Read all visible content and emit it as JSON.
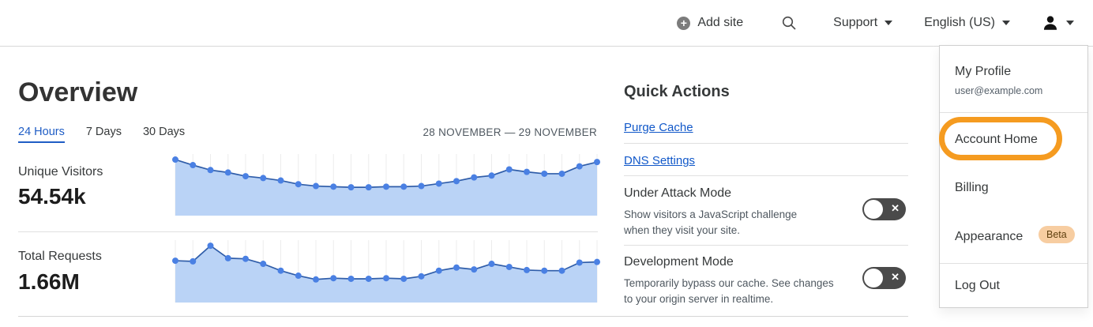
{
  "nav": {
    "add_site_label": "Add site",
    "support_label": "Support",
    "language_label": "English (US)"
  },
  "overview": {
    "title": "Overview",
    "tabs": [
      {
        "label": "24 Hours",
        "active": true
      },
      {
        "label": "7 Days",
        "active": false
      },
      {
        "label": "30 Days",
        "active": false
      }
    ],
    "date_range": "28 NOVEMBER — 29 NOVEMBER",
    "metrics": [
      {
        "label": "Unique Visitors",
        "value": "54.54k"
      },
      {
        "label": "Total Requests",
        "value": "1.66M"
      }
    ]
  },
  "chart_data": [
    {
      "type": "area",
      "title": "Unique Visitors",
      "total_label": "54.54k",
      "x_axis": "24 hours, 28 November — 29 November (ticks unlabeled)",
      "ylim": [
        0,
        100
      ],
      "grid": "vertical",
      "legend": "none",
      "values": [
        91,
        82,
        74,
        70,
        64,
        61,
        57,
        51,
        48,
        47,
        46,
        46,
        47,
        47,
        48,
        52,
        56,
        62,
        65,
        75,
        71,
        68,
        68,
        80,
        87
      ]
    },
    {
      "type": "area",
      "title": "Total Requests",
      "total_label": "1.66M",
      "x_axis": "24 hours, 28 November — 29 November (ticks unlabeled)",
      "ylim": [
        0,
        100
      ],
      "grid": "vertical",
      "legend": "none",
      "values": [
        67,
        66,
        91,
        71,
        70,
        62,
        51,
        43,
        37,
        39,
        38,
        38,
        39,
        38,
        42,
        51,
        56,
        53,
        62,
        57,
        52,
        51,
        51,
        64,
        65
      ]
    }
  ],
  "quick_actions": {
    "title": "Quick Actions",
    "links": [
      {
        "label": "Purge Cache"
      },
      {
        "label": "DNS Settings"
      }
    ],
    "toggles": [
      {
        "label": "Under Attack Mode",
        "description": "Show visitors a JavaScript challenge when they visit your site.",
        "state": "off"
      },
      {
        "label": "Development Mode",
        "description": "Temporarily bypass our cache. See changes to your origin server in realtime.",
        "state": "off"
      }
    ]
  },
  "account_menu": {
    "profile_label": "My Profile",
    "profile_email": "user@example.com",
    "items": [
      {
        "label": "Account Home"
      },
      {
        "label": "Billing"
      },
      {
        "label": "Appearance"
      },
      {
        "label": "Log Out"
      }
    ],
    "beta_badge": "Beta",
    "highlighted_item": "Account Home"
  },
  "colors": {
    "tab_active_blue": "#1f5dc5",
    "link_blue": "#1158c9",
    "chart_fill": "#bad3f6",
    "chart_line": "#2f5da9",
    "chart_dot": "#4a80e3",
    "toggle_off_bg": "#4a4a4a",
    "beta_badge_bg": "#f7cda1",
    "annotation_orange": "#f59b20"
  }
}
